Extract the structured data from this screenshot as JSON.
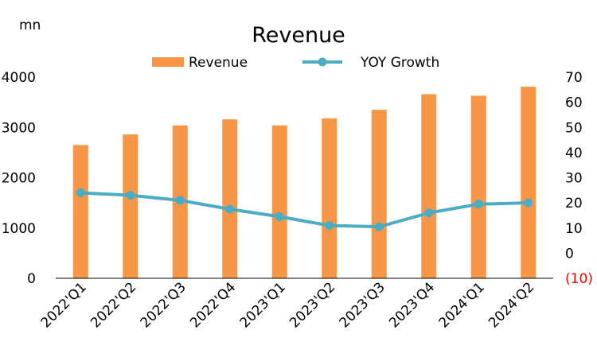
{
  "chart_data": {
    "type": "bar",
    "title": "Revenue",
    "unit_label": "mn",
    "categories": [
      "2022'Q1",
      "2022'Q2",
      "2022'Q3",
      "2022'Q4",
      "2023'Q1",
      "2023'Q2",
      "2023'Q3",
      "2023'Q4",
      "2024'Q1",
      "2024'Q2"
    ],
    "series": [
      {
        "name": "Revenue",
        "type": "bar",
        "axis": "left",
        "color": "#F79646",
        "values": [
          2650,
          2860,
          3040,
          3160,
          3040,
          3180,
          3350,
          3660,
          3630,
          3810
        ]
      },
      {
        "name": "YOY Growth",
        "type": "line",
        "axis": "right",
        "color": "#4BACC6",
        "values": [
          24,
          23,
          21,
          17.5,
          14.5,
          11,
          10.5,
          16,
          19.5,
          20
        ]
      }
    ],
    "y_left": {
      "min": 0,
      "max": 4000,
      "ticks": [
        "0",
        "1000",
        "2000",
        "3000",
        "4000"
      ]
    },
    "y_right": {
      "min": -10,
      "max": 70,
      "ticks": [
        {
          "value": 70,
          "label": "70",
          "color": "#000000"
        },
        {
          "value": 60,
          "label": "60",
          "color": "#000000"
        },
        {
          "value": 50,
          "label": "50",
          "color": "#000000"
        },
        {
          "value": 40,
          "label": "40",
          "color": "#000000"
        },
        {
          "value": 30,
          "label": "30",
          "color": "#000000"
        },
        {
          "value": 20,
          "label": "20",
          "color": "#000000"
        },
        {
          "value": 10,
          "label": "10",
          "color": "#000000"
        },
        {
          "value": 0,
          "label": "0",
          "color": "#000000"
        },
        {
          "value": -10,
          "label": "(10)",
          "color": "#FF0000"
        }
      ]
    },
    "grid": false,
    "legend": "top"
  }
}
